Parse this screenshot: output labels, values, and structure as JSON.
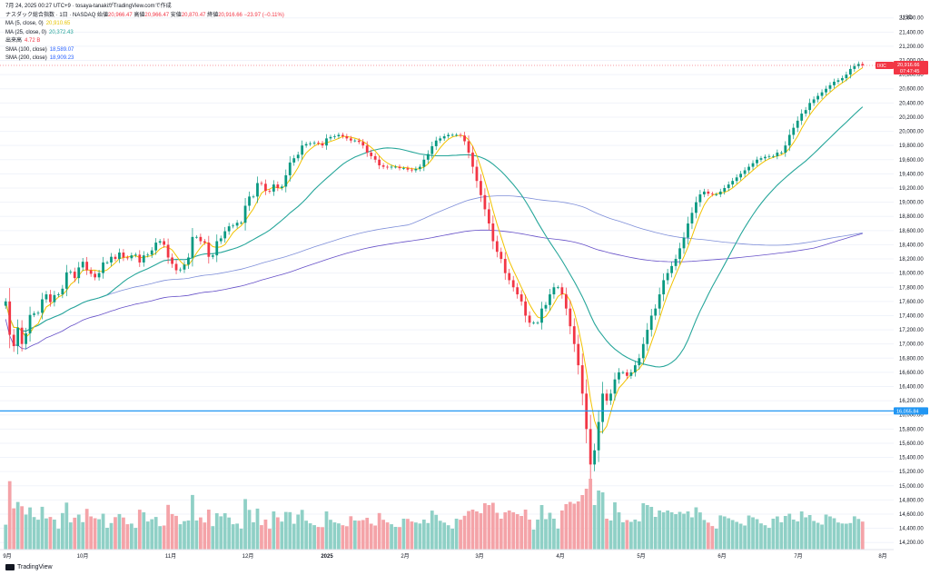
{
  "header": {
    "timestamp": "7月 24, 2025 00:27 UTC+9",
    "author": "tosaya-tanakiがTradingView.comで作成",
    "symbol": "ナスダック総合指数 · 1日 · NASDAQ",
    "ohlc": {
      "open_label": "始値",
      "open": "20,966.47",
      "high_label": "高値",
      "high": "20,966.47",
      "low_label": "安値",
      "low": "20,870.47",
      "close_label": "終値",
      "close": "20,916.66",
      "change": "−23.97 (−0.11%)"
    },
    "indicators": [
      {
        "label": "MA (5, close, 0)",
        "value": "20,910.65",
        "color": "#e6c400"
      },
      {
        "label": "MA (25, close, 0)",
        "value": "20,372.43",
        "color": "#26a69a"
      },
      {
        "label": "出来高",
        "value": "4.72 B",
        "color": "#f23645"
      },
      {
        "label": "SMA (100, close)",
        "value": "18,589.07",
        "color": "#2962ff"
      },
      {
        "label": "SMA (200, close)",
        "value": "18,909.23",
        "color": "#2962ff"
      }
    ]
  },
  "price_axis": {
    "currency": "USD",
    "ticks": [
      "21,600.00",
      "21,400.00",
      "21,200.00",
      "21,000.00",
      "20,800.00",
      "20,600.00",
      "20,400.00",
      "20,200.00",
      "20,000.00",
      "19,800.00",
      "19,600.00",
      "19,400.00",
      "19,200.00",
      "19,000.00",
      "18,800.00",
      "18,600.00",
      "18,400.00",
      "18,200.00",
      "18,000.00",
      "17,800.00",
      "17,600.00",
      "17,400.00",
      "17,200.00",
      "17,000.00",
      "16,800.00",
      "16,600.00",
      "16,400.00",
      "16,200.00",
      "16,000.00",
      "15,800.00",
      "15,600.00",
      "15,400.00",
      "15,200.00",
      "15,000.00",
      "14,800.00",
      "14,600.00",
      "14,400.00",
      "14,200.00"
    ],
    "last_price_symbol": "IXIC",
    "last_price_label": "20,916.66",
    "last_price_countdown": "07:47:45",
    "hline_label": "16,055.84"
  },
  "time_axis": {
    "ticks": [
      "9月",
      "10月",
      "11月",
      "12月",
      "2025",
      "2月",
      "3月",
      "4月",
      "5月",
      "6月",
      "7月",
      "8月"
    ]
  },
  "watermark": "TradingView",
  "colors": {
    "up": "#089981",
    "down": "#f23645",
    "vol_up": "#8fd0c6",
    "vol_down": "#f4a3a8",
    "ma5": "#f2c200",
    "ma25": "#26a69a",
    "sma100": "#7e8ed9",
    "sma200": "#6650c8",
    "hline": "#2196f3"
  },
  "chart_data": {
    "type": "candlestick",
    "y_range": [
      14100,
      21750
    ],
    "horizontal_line": 16055.84,
    "closes": [
      17600,
      17130,
      16970,
      17230,
      17000,
      17150,
      17410,
      17430,
      17440,
      17630,
      17700,
      17590,
      17690,
      17700,
      17780,
      18010,
      18020,
      17930,
      18080,
      18160,
      18040,
      17990,
      17940,
      18000,
      18150,
      18150,
      18230,
      18200,
      18290,
      18220,
      18210,
      18250,
      18260,
      18150,
      18250,
      18260,
      18320,
      18430,
      18450,
      18400,
      18220,
      18130,
      18040,
      18050,
      18120,
      18220,
      18510,
      18510,
      18450,
      18430,
      18230,
      18250,
      18450,
      18490,
      18590,
      18660,
      18670,
      18710,
      18710,
      18950,
      19080,
      19080,
      19270,
      19260,
      19160,
      19150,
      19250,
      19200,
      19220,
      19380,
      19560,
      19620,
      19670,
      19800,
      19820,
      19830,
      19840,
      19830,
      19800,
      19900,
      19920,
      19930,
      19950,
      19930,
      19900,
      19870,
      19870,
      19850,
      19800,
      19700,
      19650,
      19600,
      19520,
      19500,
      19490,
      19500,
      19500,
      19480,
      19480,
      19460,
      19450,
      19470,
      19500,
      19600,
      19680,
      19790,
      19870,
      19900,
      19930,
      19950,
      19950,
      19950,
      19940,
      19860,
      19700,
      19500,
      19300,
      19100,
      18900,
      18700,
      18450,
      18300,
      18200,
      18000,
      17900,
      17800,
      17700,
      17600,
      17400,
      17300,
      17300,
      17300,
      17500,
      17550,
      17700,
      17800,
      17800,
      17700,
      17500,
      17250,
      17000,
      16700,
      16300,
      15800,
      15300,
      15500,
      15900,
      16300,
      16200,
      16300,
      16500,
      16600,
      16600,
      16550,
      16600,
      16700,
      16800,
      17000,
      17200,
      17400,
      17500,
      17700,
      17900,
      18000,
      18100,
      18200,
      18350,
      18500,
      18700,
      18850,
      19000,
      19110,
      19150,
      19120,
      19110,
      19110,
      19150,
      19200,
      19250,
      19300,
      19350,
      19400,
      19450,
      19500,
      19550,
      19600,
      19620,
      19640,
      19650,
      19650,
      19700,
      19700,
      19800,
      19950,
      20050,
      20150,
      20250,
      20300,
      20400,
      20450,
      20500,
      20550,
      20600,
      20650,
      20700,
      20720,
      20750,
      20800,
      20880,
      20920,
      20950,
      20930
    ]
  }
}
